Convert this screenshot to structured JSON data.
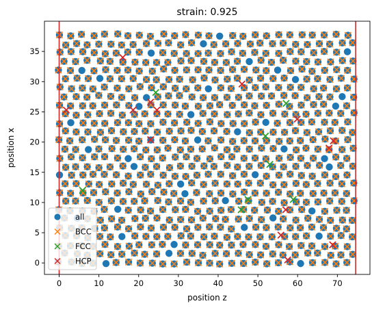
{
  "chart_data": {
    "type": "scatter",
    "title": "strain: 0.925",
    "xlabel": "position z",
    "ylabel": "position x",
    "xlim": [
      -3.7,
      78.2
    ],
    "ylim": [
      -1.9,
      40.0
    ],
    "xticks": [
      0,
      10,
      20,
      30,
      40,
      50,
      60,
      70
    ],
    "yticks": [
      0,
      5,
      10,
      15,
      20,
      25,
      30,
      35
    ],
    "grid": false,
    "legend_placement": "lower-left",
    "vertical_lines": [
      {
        "x": 0.0,
        "color": "#d62728"
      },
      {
        "x": 74.6,
        "color": "#d62728"
      }
    ],
    "series": [
      {
        "name": "all",
        "marker": "circle",
        "color": "#1f77b4",
        "points": "approx. 1250 atoms on a bcc-like lattice filling z 0 to 74.6, x 0 to 38"
      },
      {
        "name": "BCC",
        "marker": "x",
        "color": "#ff7f0e",
        "points": "nearly all lattice sites (overlaid on blue circles)"
      },
      {
        "name": "FCC",
        "marker": "x",
        "color": "#2ca02c",
        "points": [
          [
            24.3,
            28.2
          ],
          [
            57.1,
            26.4
          ],
          [
            51.9,
            21.0
          ],
          [
            53.0,
            16.3
          ],
          [
            5.9,
            12.0
          ],
          [
            47.5,
            10.5
          ],
          [
            58.9,
            10.5
          ],
          [
            45.8,
            8.8
          ]
        ]
      },
      {
        "name": "HCP",
        "marker": "x",
        "color": "#d62728",
        "points": [
          [
            1.8,
            25.3
          ],
          [
            18.6,
            25.3
          ],
          [
            23.0,
            26.6
          ],
          [
            24.6,
            25.3
          ],
          [
            59.9,
            23.8
          ],
          [
            23.0,
            20.4
          ],
          [
            46.0,
            29.6
          ],
          [
            16.0,
            34.0
          ],
          [
            67.9,
            19.0
          ],
          [
            69.0,
            20.2
          ],
          [
            57.0,
            8.8
          ],
          [
            55.8,
            4.6
          ],
          [
            57.5,
            0.5
          ],
          [
            68.8,
            3.0
          ]
        ]
      }
    ]
  }
}
